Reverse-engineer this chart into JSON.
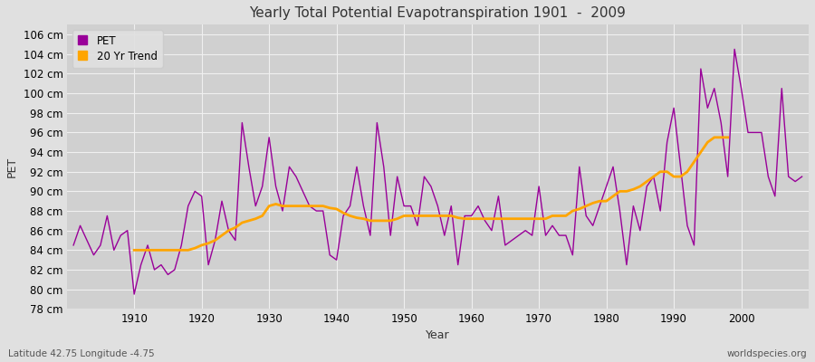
{
  "title": "Yearly Total Potential Evapotranspiration 1901  -  2009",
  "xlabel": "Year",
  "ylabel": "PET",
  "footnote_left": "Latitude 42.75 Longitude -4.75",
  "footnote_right": "worldspecies.org",
  "ylim": [
    78,
    107
  ],
  "ytick_step": 2,
  "pet_color": "#990099",
  "trend_color": "#FFA500",
  "bg_color": "#e0e0e0",
  "plot_bg_color": "#d0d0d0",
  "grid_color": "#f0f0f0",
  "legend_labels": [
    "PET",
    "20 Yr Trend"
  ],
  "years": [
    1901,
    1902,
    1903,
    1904,
    1905,
    1906,
    1907,
    1908,
    1909,
    1910,
    1911,
    1912,
    1913,
    1914,
    1915,
    1916,
    1917,
    1918,
    1919,
    1920,
    1921,
    1922,
    1923,
    1924,
    1925,
    1926,
    1927,
    1928,
    1929,
    1930,
    1931,
    1932,
    1933,
    1934,
    1935,
    1936,
    1937,
    1938,
    1939,
    1940,
    1941,
    1942,
    1943,
    1944,
    1945,
    1946,
    1947,
    1948,
    1949,
    1950,
    1951,
    1952,
    1953,
    1954,
    1955,
    1956,
    1957,
    1958,
    1959,
    1960,
    1961,
    1962,
    1963,
    1964,
    1965,
    1966,
    1967,
    1968,
    1969,
    1970,
    1971,
    1972,
    1973,
    1974,
    1975,
    1976,
    1977,
    1978,
    1979,
    1980,
    1981,
    1982,
    1983,
    1984,
    1985,
    1986,
    1987,
    1988,
    1989,
    1990,
    1991,
    1992,
    1993,
    1994,
    1995,
    1996,
    1997,
    1998,
    1999,
    2000,
    2001,
    2002,
    2003,
    2004,
    2005,
    2006,
    2007,
    2008,
    2009
  ],
  "pet_values": [
    84.5,
    86.5,
    85.0,
    83.5,
    84.5,
    87.5,
    84.0,
    85.5,
    86.0,
    79.5,
    82.5,
    84.5,
    82.0,
    82.5,
    81.5,
    82.0,
    84.5,
    88.5,
    90.0,
    89.5,
    82.5,
    85.0,
    89.0,
    86.0,
    85.0,
    97.0,
    92.5,
    88.5,
    90.5,
    95.5,
    90.5,
    88.0,
    92.5,
    91.5,
    90.0,
    88.5,
    88.0,
    88.0,
    83.5,
    83.0,
    87.5,
    88.5,
    92.5,
    88.5,
    85.5,
    97.0,
    92.5,
    85.5,
    91.5,
    88.5,
    88.5,
    86.5,
    91.5,
    90.5,
    88.5,
    85.5,
    88.5,
    82.5,
    87.5,
    87.5,
    88.5,
    87.0,
    86.0,
    89.5,
    84.5,
    85.0,
    85.5,
    86.0,
    85.5,
    90.5,
    85.5,
    86.5,
    85.5,
    85.5,
    83.5,
    92.5,
    87.5,
    86.5,
    88.5,
    90.5,
    92.5,
    88.0,
    82.5,
    88.5,
    86.0,
    90.5,
    91.5,
    88.0,
    95.0,
    98.5,
    92.5,
    86.5,
    84.5,
    102.5,
    98.5,
    100.5,
    97.0,
    91.5,
    104.5,
    100.5,
    96.0,
    96.0,
    96.0,
    91.5,
    89.5,
    100.5,
    91.5,
    91.0,
    91.5
  ],
  "trend_values": [
    null,
    null,
    null,
    null,
    null,
    null,
    null,
    null,
    null,
    84.0,
    84.0,
    84.0,
    84.0,
    84.0,
    84.0,
    84.0,
    84.0,
    84.0,
    84.2,
    84.5,
    84.7,
    85.0,
    85.5,
    86.0,
    86.3,
    86.8,
    87.0,
    87.2,
    87.5,
    88.5,
    88.7,
    88.5,
    88.5,
    88.5,
    88.5,
    88.5,
    88.5,
    88.5,
    88.3,
    88.2,
    87.8,
    87.5,
    87.3,
    87.2,
    87.0,
    87.0,
    87.0,
    87.0,
    87.2,
    87.5,
    87.5,
    87.5,
    87.5,
    87.5,
    87.5,
    87.5,
    87.5,
    87.3,
    87.2,
    87.2,
    87.2,
    87.2,
    87.2,
    87.2,
    87.2,
    87.2,
    87.2,
    87.2,
    87.2,
    87.2,
    87.2,
    87.5,
    87.5,
    87.5,
    88.0,
    88.2,
    88.5,
    88.8,
    89.0,
    89.0,
    89.5,
    90.0,
    90.0,
    90.2,
    90.5,
    91.0,
    91.5,
    92.0,
    92.0,
    91.5,
    91.5,
    92.0,
    93.0,
    94.0,
    95.0,
    95.5,
    95.5,
    95.5,
    null,
    null,
    null,
    null,
    null,
    null,
    null,
    null,
    null,
    null
  ]
}
